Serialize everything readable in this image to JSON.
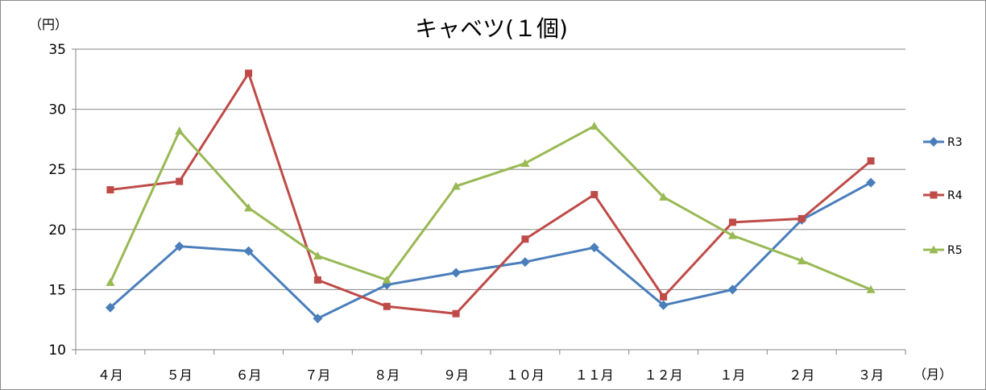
{
  "chart_data": {
    "type": "line",
    "title": "キャベツ(１個)",
    "ylabel": "（円）",
    "xlabel": "（月）",
    "ylim": [
      10,
      35
    ],
    "yticks": [
      10,
      15,
      20,
      25,
      30,
      35
    ],
    "grid": true,
    "legend_position": "right",
    "categories": [
      "４月",
      "５月",
      "６月",
      "７月",
      "８月",
      "９月",
      "１０月",
      "１１月",
      "１２月",
      "１月",
      "２月",
      "３月"
    ],
    "series": [
      {
        "name": "R3",
        "color": "#4a7ebb",
        "marker": "diamond",
        "values": [
          13.5,
          18.6,
          18.2,
          12.6,
          15.4,
          16.4,
          17.3,
          18.5,
          13.7,
          15.0,
          20.8,
          23.9
        ]
      },
      {
        "name": "R4",
        "color": "#be4b48",
        "marker": "square",
        "values": [
          23.3,
          24.0,
          33.0,
          15.8,
          13.6,
          13.0,
          19.2,
          22.9,
          14.4,
          20.6,
          20.9,
          25.7
        ]
      },
      {
        "name": "R5",
        "color": "#98b954",
        "marker": "triangle",
        "values": [
          15.6,
          28.2,
          21.8,
          17.8,
          15.8,
          23.6,
          25.5,
          28.6,
          22.7,
          19.5,
          17.4,
          15.0
        ]
      }
    ]
  }
}
